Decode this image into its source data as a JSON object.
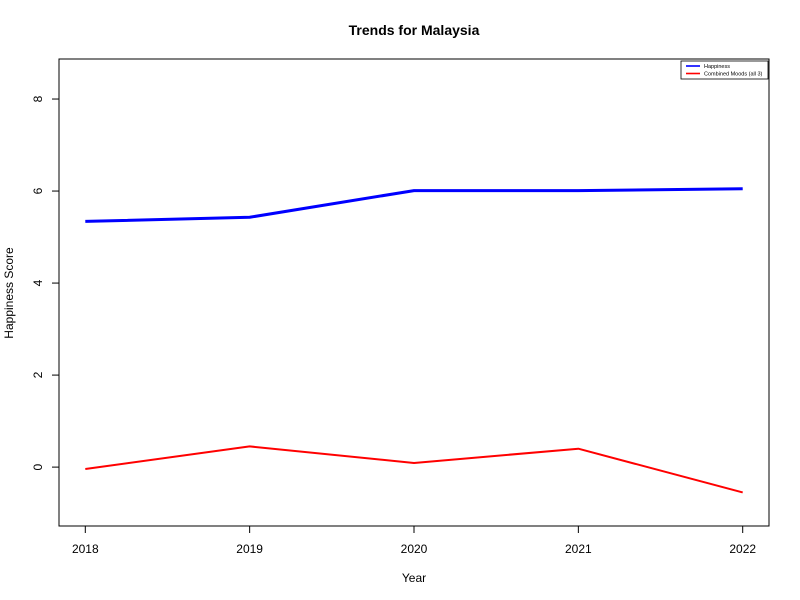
{
  "chart_data": {
    "type": "line",
    "title": "Trends for Malaysia",
    "xlabel": "Year",
    "ylabel": "Happiness Score",
    "x": [
      2018,
      2019,
      2020,
      2021,
      2022
    ],
    "x_ticks": [
      "2018",
      "2019",
      "2020",
      "2021",
      "2022"
    ],
    "y_ticks": [
      "0",
      "2",
      "4",
      "6",
      "8"
    ],
    "xlim": [
      2017.84,
      2022.16
    ],
    "ylim": [
      -1.28,
      8.87
    ],
    "grid": false,
    "legend_position": "top-right",
    "series": [
      {
        "name": "Happiness",
        "color": "#0000FF",
        "values": [
          5.34,
          5.43,
          6.01,
          6.01,
          6.05
        ]
      },
      {
        "name": "Combined Moods (all 3)",
        "color": "#FF0000",
        "values": [
          -0.04,
          0.45,
          0.09,
          0.4,
          -0.55
        ]
      }
    ]
  }
}
